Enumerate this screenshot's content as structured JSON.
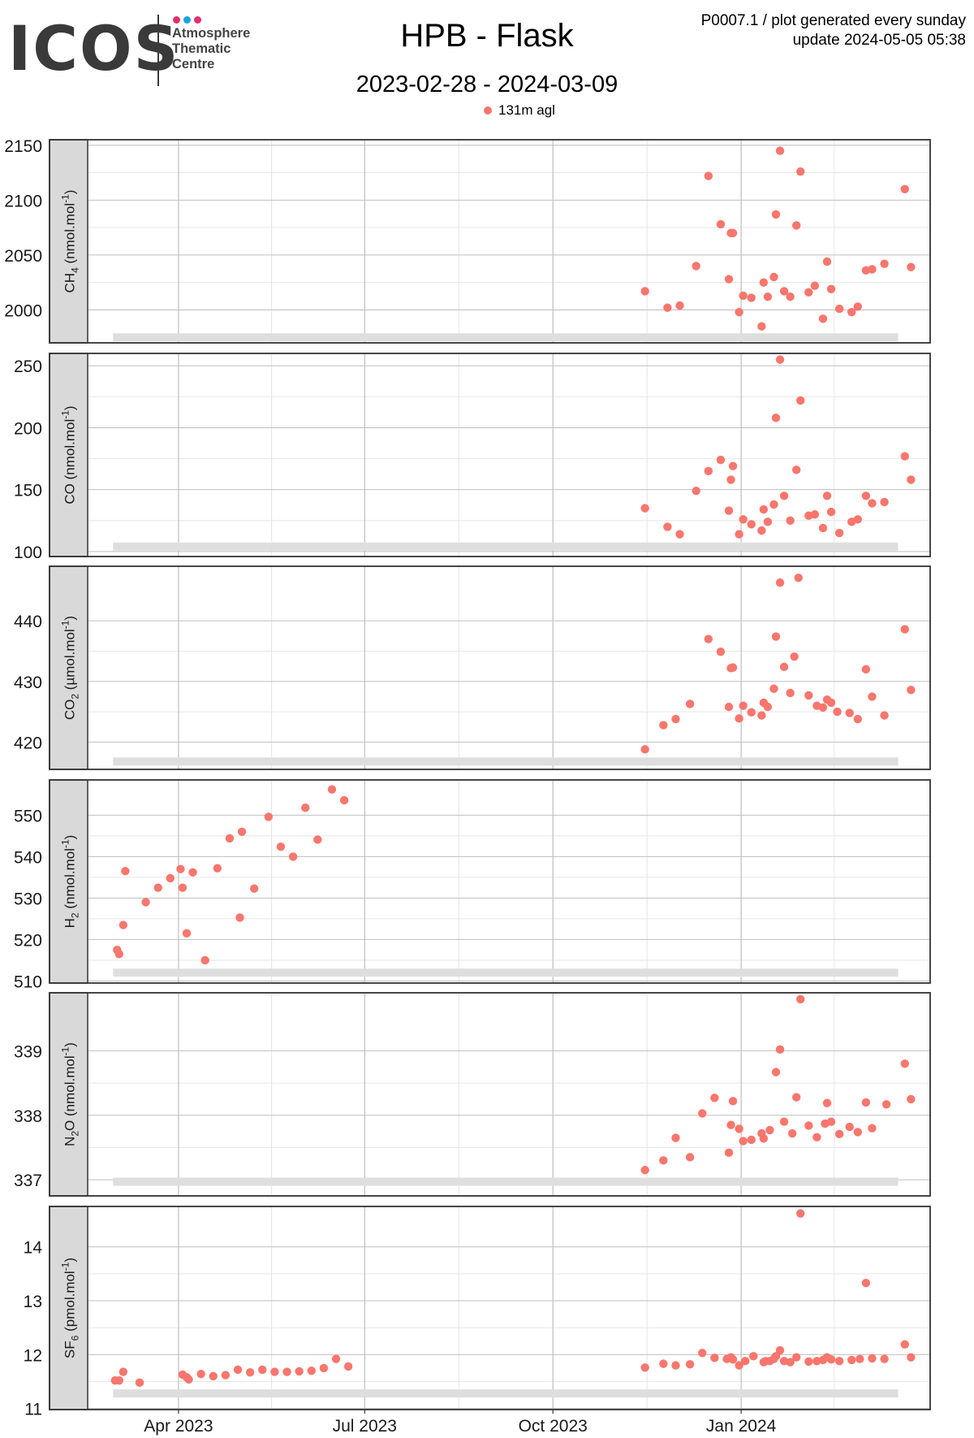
{
  "logo": {
    "word": "ICOS",
    "sub_lines": [
      "Atmosphere",
      "Thematic",
      "Centre"
    ],
    "dot_colors": [
      "#e0306e",
      "#1aa3e0",
      "#e0306e"
    ],
    "text_color": "#3a3a3a"
  },
  "header": {
    "title": "HPB - Flask",
    "subtitle": "2023-02-28 - 2024-03-09",
    "meta_line1": "P0007.1 / plot generated every sunday",
    "meta_line2": "update  2024-05-05 05:38"
  },
  "legend": {
    "label": "131m agl",
    "color": "#f8766d"
  },
  "colors": {
    "point": "#f8766d",
    "strip": "#d9d9d9",
    "grid_major": "#bfbfbf",
    "grid_minor": "#e6e6e6",
    "coverage_bar": "#dedede",
    "panel_border": "#333333"
  },
  "chart_data": {
    "type": "scatter",
    "x_ticks": [
      {
        "date": "2023-04-01",
        "label": "Apr 2023"
      },
      {
        "date": "2023-07-01",
        "label": "Jul 2023"
      },
      {
        "date": "2023-10-01",
        "label": "Oct 2023"
      },
      {
        "date": "2024-01-01",
        "label": "Jan 2024"
      }
    ],
    "coverage": {
      "start": "2023-02-28",
      "end": "2024-03-09"
    },
    "panels": [
      {
        "id": "ch4",
        "species": "CH",
        "sub": "4",
        "unit": "(nmol.mol",
        "unit_sup": "-1",
        "unit_tail": ")",
        "ylim": [
          1970,
          2155
        ],
        "yticks": [
          2000,
          2050,
          2100,
          2150
        ],
        "bar_y": 1975,
        "points": [
          [
            "2023-11-15",
            2017
          ],
          [
            "2023-11-26",
            2002
          ],
          [
            "2023-12-02",
            2004
          ],
          [
            "2023-12-10",
            2040
          ],
          [
            "2023-12-16",
            2122
          ],
          [
            "2023-12-22",
            2078
          ],
          [
            "2023-12-26",
            2028
          ],
          [
            "2023-12-27",
            2070
          ],
          [
            "2023-12-28",
            2070
          ],
          [
            "2023-12-31",
            1998
          ],
          [
            "2024-01-02",
            2013
          ],
          [
            "2024-01-06",
            2011
          ],
          [
            "2024-01-11",
            1985
          ],
          [
            "2024-01-12",
            2025
          ],
          [
            "2024-01-14",
            2012
          ],
          [
            "2024-01-17",
            2030
          ],
          [
            "2024-01-18",
            2087
          ],
          [
            "2024-01-20",
            2145
          ],
          [
            "2024-01-22",
            2017
          ],
          [
            "2024-01-25",
            2012
          ],
          [
            "2024-01-28",
            2077
          ],
          [
            "2024-01-30",
            2126
          ],
          [
            "2024-02-03",
            2016
          ],
          [
            "2024-02-06",
            2022
          ],
          [
            "2024-02-10",
            1992
          ],
          [
            "2024-02-12",
            2044
          ],
          [
            "2024-02-14",
            2019
          ],
          [
            "2024-02-18",
            2001
          ],
          [
            "2024-02-24",
            1998
          ],
          [
            "2024-02-27",
            2003
          ],
          [
            "2024-03-02",
            2036
          ],
          [
            "2024-03-05",
            2037
          ],
          [
            "2024-03-11",
            2042
          ],
          [
            "2024-03-21",
            2110
          ],
          [
            "2024-03-24",
            2039
          ]
        ]
      },
      {
        "id": "co",
        "species": "CO",
        "sub": "",
        "unit": "(nmol.mol",
        "unit_sup": "-1",
        "unit_tail": ")",
        "ylim": [
          96,
          260
        ],
        "yticks": [
          100,
          150,
          200,
          250
        ],
        "bar_y": 104,
        "points": [
          [
            "2023-11-15",
            135
          ],
          [
            "2023-11-26",
            120
          ],
          [
            "2023-12-02",
            114
          ],
          [
            "2023-12-10",
            149
          ],
          [
            "2023-12-16",
            165
          ],
          [
            "2023-12-22",
            174
          ],
          [
            "2023-12-26",
            133
          ],
          [
            "2023-12-27",
            158
          ],
          [
            "2023-12-28",
            169
          ],
          [
            "2023-12-31",
            114
          ],
          [
            "2024-01-02",
            126
          ],
          [
            "2024-01-06",
            122
          ],
          [
            "2024-01-11",
            117
          ],
          [
            "2024-01-12",
            134
          ],
          [
            "2024-01-14",
            124
          ],
          [
            "2024-01-17",
            138
          ],
          [
            "2024-01-18",
            208
          ],
          [
            "2024-01-20",
            255
          ],
          [
            "2024-01-22",
            145
          ],
          [
            "2024-01-25",
            125
          ],
          [
            "2024-01-28",
            166
          ],
          [
            "2024-01-30",
            222
          ],
          [
            "2024-02-03",
            129
          ],
          [
            "2024-02-06",
            130
          ],
          [
            "2024-02-10",
            119
          ],
          [
            "2024-02-12",
            145
          ],
          [
            "2024-02-14",
            132
          ],
          [
            "2024-02-18",
            115
          ],
          [
            "2024-02-24",
            124
          ],
          [
            "2024-02-27",
            126
          ],
          [
            "2024-03-02",
            145
          ],
          [
            "2024-03-05",
            139
          ],
          [
            "2024-03-11",
            140
          ],
          [
            "2024-03-21",
            177
          ],
          [
            "2024-03-24",
            158
          ]
        ]
      },
      {
        "id": "co2",
        "species": "CO",
        "sub": "2",
        "unit": "(µmol.mol",
        "unit_sup": "-1",
        "unit_tail": ")",
        "ylim": [
          415.5,
          449
        ],
        "yticks": [
          420,
          430,
          440
        ],
        "bar_y": 416.8,
        "points": [
          [
            "2023-11-15",
            418.8
          ],
          [
            "2023-11-24",
            422.8
          ],
          [
            "2023-11-30",
            423.8
          ],
          [
            "2023-12-07",
            426.3
          ],
          [
            "2023-12-16",
            437.0
          ],
          [
            "2023-12-22",
            434.9
          ],
          [
            "2023-12-26",
            425.8
          ],
          [
            "2023-12-27",
            432.2
          ],
          [
            "2023-12-28",
            432.3
          ],
          [
            "2023-12-31",
            423.9
          ],
          [
            "2024-01-02",
            426.0
          ],
          [
            "2024-01-06",
            424.9
          ],
          [
            "2024-01-11",
            424.4
          ],
          [
            "2024-01-12",
            426.5
          ],
          [
            "2024-01-14",
            425.8
          ],
          [
            "2024-01-17",
            428.8
          ],
          [
            "2024-01-18",
            437.4
          ],
          [
            "2024-01-20",
            446.3
          ],
          [
            "2024-01-22",
            432.4
          ],
          [
            "2024-01-25",
            428.1
          ],
          [
            "2024-01-27",
            434.1
          ],
          [
            "2024-01-29",
            447.1
          ],
          [
            "2024-02-03",
            427.7
          ],
          [
            "2024-02-07",
            426.0
          ],
          [
            "2024-02-10",
            425.7
          ],
          [
            "2024-02-12",
            427.0
          ],
          [
            "2024-02-14",
            426.5
          ],
          [
            "2024-02-17",
            425.0
          ],
          [
            "2024-02-23",
            424.8
          ],
          [
            "2024-02-27",
            423.8
          ],
          [
            "2024-03-02",
            432.0
          ],
          [
            "2024-03-05",
            427.5
          ],
          [
            "2024-03-11",
            424.4
          ],
          [
            "2024-03-21",
            438.6
          ],
          [
            "2024-03-24",
            428.6
          ]
        ]
      },
      {
        "id": "h2",
        "species": "H",
        "sub": "2",
        "unit": "(nmol.mol",
        "unit_sup": "-1",
        "unit_tail": ")",
        "ylim": [
          509.5,
          558.5
        ],
        "yticks": [
          510,
          520,
          530,
          540,
          550
        ],
        "bar_y": 512,
        "points": [
          [
            "2023-03-02",
            517.5
          ],
          [
            "2023-03-03",
            516.5
          ],
          [
            "2023-03-05",
            523.5
          ],
          [
            "2023-03-06",
            536.5
          ],
          [
            "2023-03-16",
            529.0
          ],
          [
            "2023-03-22",
            532.5
          ],
          [
            "2023-03-28",
            534.8
          ],
          [
            "2023-04-02",
            537.0
          ],
          [
            "2023-04-03",
            532.5
          ],
          [
            "2023-04-05",
            521.5
          ],
          [
            "2023-04-08",
            536.2
          ],
          [
            "2023-04-14",
            515.0
          ],
          [
            "2023-04-20",
            537.2
          ],
          [
            "2023-04-26",
            544.4
          ],
          [
            "2023-05-01",
            525.3
          ],
          [
            "2023-05-02",
            546.0
          ],
          [
            "2023-05-08",
            532.3
          ],
          [
            "2023-05-15",
            549.6
          ],
          [
            "2023-05-21",
            542.4
          ],
          [
            "2023-05-27",
            540.0
          ],
          [
            "2023-06-02",
            551.8
          ],
          [
            "2023-06-08",
            544.1
          ],
          [
            "2023-06-15",
            556.2
          ],
          [
            "2023-06-21",
            553.6
          ]
        ]
      },
      {
        "id": "n2o",
        "species": "N",
        "sub": "2",
        "species_tail": "O",
        "unit": "(nmol.mol",
        "unit_sup": "-1",
        "unit_tail": ")",
        "ylim": [
          336.75,
          339.9
        ],
        "yticks": [
          337,
          338,
          339
        ],
        "bar_y": 336.97,
        "points": [
          [
            "2023-11-15",
            337.15
          ],
          [
            "2023-11-24",
            337.3
          ],
          [
            "2023-11-30",
            337.65
          ],
          [
            "2023-12-07",
            337.35
          ],
          [
            "2023-12-13",
            338.03
          ],
          [
            "2023-12-19",
            338.27
          ],
          [
            "2023-12-26",
            337.42
          ],
          [
            "2023-12-27",
            337.85
          ],
          [
            "2023-12-28",
            338.22
          ],
          [
            "2023-12-31",
            337.79
          ],
          [
            "2024-01-02",
            337.6
          ],
          [
            "2024-01-06",
            337.62
          ],
          [
            "2024-01-11",
            337.72
          ],
          [
            "2024-01-12",
            337.64
          ],
          [
            "2024-01-15",
            337.77
          ],
          [
            "2024-01-18",
            338.67
          ],
          [
            "2024-01-20",
            339.02
          ],
          [
            "2024-01-22",
            337.9
          ],
          [
            "2024-01-26",
            337.72
          ],
          [
            "2024-01-28",
            338.28
          ],
          [
            "2024-01-30",
            339.8
          ],
          [
            "2024-02-03",
            337.84
          ],
          [
            "2024-02-07",
            337.66
          ],
          [
            "2024-02-11",
            337.87
          ],
          [
            "2024-02-14",
            337.9
          ],
          [
            "2024-02-12",
            338.19
          ],
          [
            "2024-02-18",
            337.71
          ],
          [
            "2024-02-23",
            337.82
          ],
          [
            "2024-02-27",
            337.74
          ],
          [
            "2024-03-02",
            338.2
          ],
          [
            "2024-03-05",
            337.8
          ],
          [
            "2024-03-12",
            338.17
          ],
          [
            "2024-03-21",
            338.8
          ],
          [
            "2024-03-24",
            338.25
          ]
        ]
      },
      {
        "id": "sf6",
        "species": "SF",
        "sub": "6",
        "unit": "(pmol.mol",
        "unit_sup": "-1",
        "unit_tail": ")",
        "ylim": [
          10.98,
          14.75
        ],
        "yticks": [
          11,
          12,
          13,
          14
        ],
        "bar_y": 11.28,
        "points": [
          [
            "2023-03-01",
            11.52
          ],
          [
            "2023-03-03",
            11.52
          ],
          [
            "2023-03-05",
            11.68
          ],
          [
            "2023-03-13",
            11.48
          ],
          [
            "2023-04-03",
            11.63
          ],
          [
            "2023-04-05",
            11.58
          ],
          [
            "2023-04-06",
            11.54
          ],
          [
            "2023-04-12",
            11.64
          ],
          [
            "2023-04-18",
            11.6
          ],
          [
            "2023-04-24",
            11.62
          ],
          [
            "2023-04-30",
            11.72
          ],
          [
            "2023-05-06",
            11.67
          ],
          [
            "2023-05-12",
            11.72
          ],
          [
            "2023-05-18",
            11.68
          ],
          [
            "2023-05-24",
            11.68
          ],
          [
            "2023-05-30",
            11.69
          ],
          [
            "2023-06-05",
            11.7
          ],
          [
            "2023-06-11",
            11.75
          ],
          [
            "2023-06-17",
            11.92
          ],
          [
            "2023-06-23",
            11.78
          ],
          [
            "2023-11-15",
            11.76
          ],
          [
            "2023-11-24",
            11.83
          ],
          [
            "2023-11-30",
            11.8
          ],
          [
            "2023-12-07",
            11.82
          ],
          [
            "2023-12-13",
            12.03
          ],
          [
            "2023-12-19",
            11.94
          ],
          [
            "2023-12-25",
            11.92
          ],
          [
            "2023-12-27",
            11.95
          ],
          [
            "2023-12-28",
            11.91
          ],
          [
            "2023-12-31",
            11.8
          ],
          [
            "2024-01-03",
            11.88
          ],
          [
            "2024-01-07",
            11.97
          ],
          [
            "2024-01-12",
            11.86
          ],
          [
            "2024-01-13",
            11.88
          ],
          [
            "2024-01-15",
            11.88
          ],
          [
            "2024-01-17",
            11.92
          ],
          [
            "2024-01-18",
            11.97
          ],
          [
            "2024-01-20",
            12.08
          ],
          [
            "2024-01-22",
            11.88
          ],
          [
            "2024-01-25",
            11.86
          ],
          [
            "2024-01-28",
            11.95
          ],
          [
            "2024-01-30",
            14.62
          ],
          [
            "2024-02-03",
            11.87
          ],
          [
            "2024-02-07",
            11.88
          ],
          [
            "2024-02-10",
            11.9
          ],
          [
            "2024-02-12",
            11.95
          ],
          [
            "2024-02-14",
            11.91
          ],
          [
            "2024-02-18",
            11.88
          ],
          [
            "2024-02-24",
            11.9
          ],
          [
            "2024-02-28",
            11.92
          ],
          [
            "2024-03-02",
            13.33
          ],
          [
            "2024-03-05",
            11.93
          ],
          [
            "2024-03-11",
            11.92
          ],
          [
            "2024-03-21",
            12.19
          ],
          [
            "2024-03-24",
            11.95
          ]
        ]
      }
    ]
  }
}
